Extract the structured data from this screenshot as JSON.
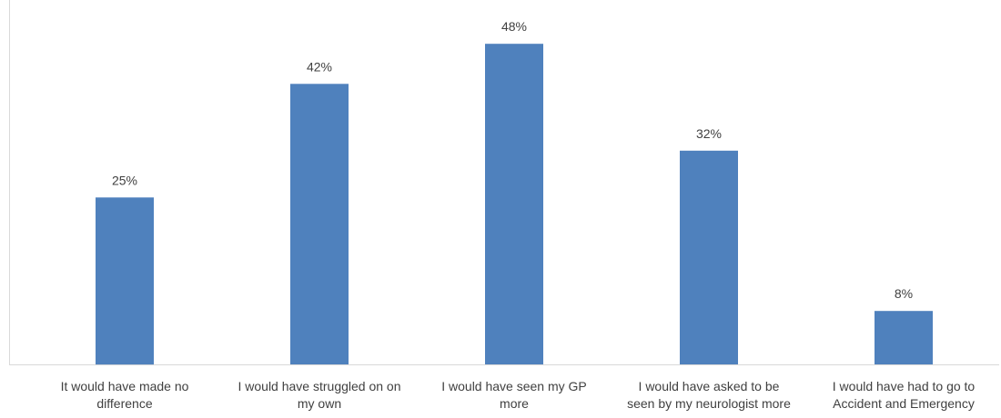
{
  "chart_data": {
    "type": "bar",
    "title": "",
    "xlabel": "",
    "ylabel": "",
    "categories": [
      [
        "It would have made no",
        "difference"
      ],
      [
        "I would have struggled on on",
        "my own"
      ],
      [
        "I would have seen my GP",
        "more"
      ],
      [
        "I would have asked to be",
        "seen by my neurologist more"
      ],
      [
        "I would have had to go to",
        "Accident and Emergency"
      ]
    ],
    "values": [
      25,
      42,
      48,
      32,
      8
    ],
    "value_labels": [
      "25%",
      "42%",
      "48%",
      "32%",
      "8%"
    ],
    "ylim": [
      0,
      50
    ],
    "grid": false,
    "legend": "none",
    "bar_color": "#4f81bd",
    "axis_color": "#d9d9d9"
  }
}
